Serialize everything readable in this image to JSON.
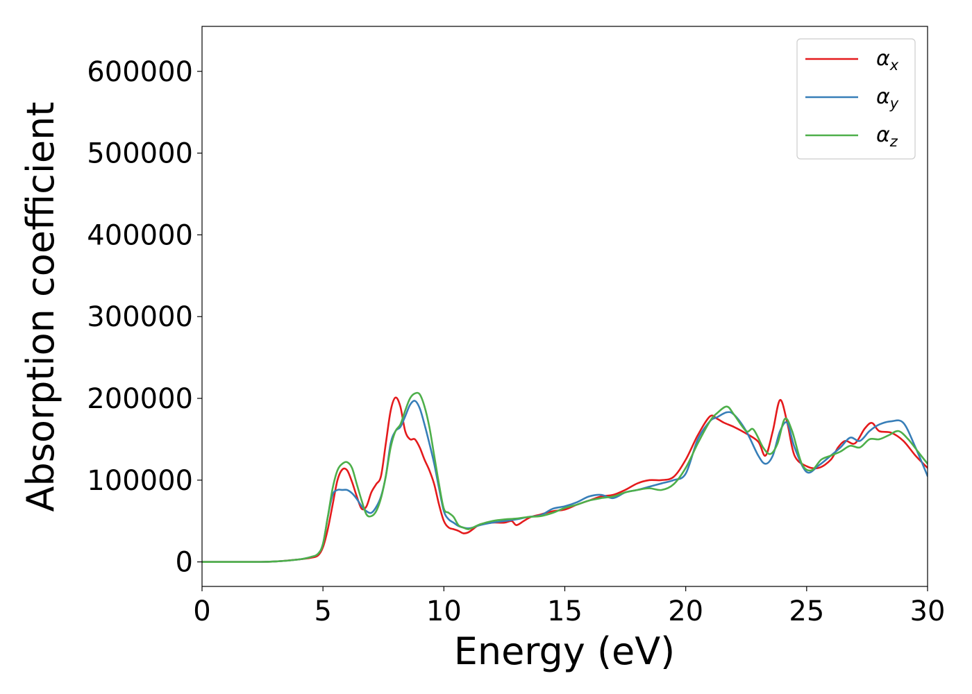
{
  "chart_data": {
    "type": "line",
    "title": "",
    "xlabel": "Energy (eV)",
    "ylabel": "Absorption coefficient",
    "xlim": [
      0,
      30
    ],
    "ylim": [
      -30000,
      655000
    ],
    "grid": false,
    "legend_position": "top-right",
    "x_ticks": [
      0,
      5,
      10,
      15,
      20,
      25,
      30
    ],
    "x_tick_labels": [
      "0",
      "5",
      "10",
      "15",
      "20",
      "25",
      "30"
    ],
    "y_ticks": [
      0,
      100000,
      200000,
      300000,
      400000,
      500000,
      600000
    ],
    "y_tick_labels": [
      "0",
      "100000",
      "200000",
      "300000",
      "400000",
      "500000",
      "600000"
    ],
    "series": [
      {
        "name": "α",
        "subscript": "x",
        "color": "#e41a1c",
        "x": [
          0,
          2,
          3,
          4,
          4.5,
          4.8,
          5.0,
          5.2,
          5.4,
          5.6,
          5.8,
          6.0,
          6.2,
          6.4,
          6.6,
          6.8,
          7.0,
          7.2,
          7.4,
          7.6,
          7.8,
          8.0,
          8.2,
          8.4,
          8.6,
          8.8,
          9.0,
          9.2,
          9.4,
          9.6,
          9.8,
          10.0,
          10.2,
          10.4,
          10.6,
          10.8,
          11.0,
          11.2,
          11.5,
          12.0,
          12.5,
          12.8,
          13.0,
          13.3,
          13.6,
          14.0,
          14.5,
          15.0,
          15.5,
          16.0,
          16.5,
          17.0,
          17.5,
          18.0,
          18.5,
          19.0,
          19.5,
          20.0,
          20.5,
          21.0,
          21.3,
          21.6,
          22.0,
          22.5,
          23.0,
          23.3,
          23.6,
          23.9,
          24.2,
          24.5,
          25.0,
          25.5,
          26.0,
          26.3,
          26.6,
          27.0,
          27.4,
          27.7,
          28.0,
          28.5,
          29.0,
          29.5,
          30.0
        ],
        "y": [
          0,
          0,
          500,
          3000,
          5000,
          8000,
          18000,
          40000,
          70000,
          100000,
          113000,
          112000,
          98000,
          80000,
          65000,
          68000,
          85000,
          95000,
          105000,
          145000,
          185000,
          201000,
          190000,
          160000,
          150000,
          150000,
          140000,
          125000,
          112000,
          95000,
          70000,
          50000,
          42000,
          40000,
          38000,
          35000,
          36000,
          40000,
          46000,
          48000,
          48000,
          50000,
          45000,
          50000,
          55000,
          58000,
          62000,
          64000,
          70000,
          75000,
          80000,
          82000,
          88000,
          96000,
          100000,
          100000,
          104000,
          125000,
          155000,
          178000,
          175000,
          170000,
          165000,
          157000,
          147000,
          130000,
          160000,
          198000,
          170000,
          130000,
          117000,
          115000,
          125000,
          140000,
          148000,
          145000,
          163000,
          170000,
          160000,
          158000,
          148000,
          130000,
          115000
        ]
      },
      {
        "name": "α",
        "subscript": "y",
        "color": "#377eb8",
        "x": [
          0,
          2,
          3,
          4,
          4.5,
          4.8,
          5.0,
          5.2,
          5.4,
          5.6,
          5.8,
          6.0,
          6.2,
          6.4,
          6.6,
          6.8,
          7.0,
          7.2,
          7.4,
          7.6,
          7.8,
          8.0,
          8.2,
          8.4,
          8.6,
          8.8,
          9.0,
          9.2,
          9.4,
          9.6,
          9.8,
          10.0,
          10.2,
          10.4,
          10.6,
          10.8,
          11.0,
          11.2,
          11.5,
          12.0,
          12.5,
          13.0,
          13.5,
          14.0,
          14.5,
          15.0,
          15.5,
          16.0,
          16.5,
          17.0,
          17.5,
          18.0,
          18.5,
          19.0,
          19.5,
          20.0,
          20.5,
          21.0,
          21.3,
          21.7,
          22.0,
          22.5,
          23.0,
          23.3,
          23.6,
          23.9,
          24.2,
          24.5,
          25.0,
          25.5,
          26.0,
          26.4,
          26.8,
          27.2,
          27.6,
          28.0,
          28.5,
          29.0,
          29.5,
          30.0
        ],
        "y": [
          0,
          0,
          500,
          3000,
          6000,
          10000,
          22000,
          55000,
          82000,
          88000,
          88000,
          88000,
          84000,
          77000,
          68000,
          62000,
          60000,
          67000,
          80000,
          105000,
          145000,
          160000,
          165000,
          178000,
          192000,
          197000,
          188000,
          168000,
          145000,
          120000,
          90000,
          62000,
          52000,
          48000,
          44000,
          42000,
          41000,
          42000,
          45000,
          48000,
          50000,
          52000,
          55000,
          57000,
          65000,
          68000,
          73000,
          80000,
          82000,
          78000,
          85000,
          88000,
          92000,
          96000,
          100000,
          108000,
          150000,
          172000,
          177000,
          183000,
          180000,
          160000,
          130000,
          120000,
          130000,
          160000,
          170000,
          140000,
          110000,
          118000,
          130000,
          140000,
          152000,
          148000,
          160000,
          168000,
          172000,
          170000,
          140000,
          105000
        ]
      },
      {
        "name": "α",
        "subscript": "z",
        "color": "#4daf4a",
        "x": [
          0,
          2,
          3,
          4,
          4.5,
          4.8,
          5.0,
          5.2,
          5.4,
          5.6,
          5.8,
          6.0,
          6.2,
          6.4,
          6.6,
          6.8,
          7.0,
          7.2,
          7.4,
          7.6,
          7.8,
          8.0,
          8.2,
          8.4,
          8.6,
          8.8,
          9.0,
          9.2,
          9.4,
          9.6,
          9.8,
          10.0,
          10.2,
          10.4,
          10.6,
          10.8,
          11.0,
          11.2,
          11.5,
          12.0,
          12.5,
          13.0,
          13.5,
          14.0,
          14.5,
          15.0,
          15.5,
          16.0,
          16.5,
          17.0,
          17.5,
          18.0,
          18.5,
          19.0,
          19.5,
          20.0,
          20.5,
          21.0,
          21.3,
          21.7,
          22.0,
          22.5,
          22.8,
          23.2,
          23.5,
          23.8,
          24.1,
          24.4,
          24.8,
          25.2,
          25.6,
          26.0,
          26.4,
          26.8,
          27.2,
          27.6,
          28.0,
          28.4,
          28.8,
          29.2,
          29.6,
          30.0
        ],
        "y": [
          0,
          0,
          500,
          3000,
          6000,
          10000,
          22000,
          55000,
          90000,
          112000,
          120000,
          122000,
          115000,
          95000,
          75000,
          58000,
          56000,
          62000,
          78000,
          105000,
          140000,
          160000,
          168000,
          185000,
          200000,
          206000,
          205000,
          190000,
          165000,
          130000,
          95000,
          65000,
          60000,
          55000,
          45000,
          42000,
          40000,
          42000,
          46000,
          50000,
          52000,
          53000,
          55000,
          56000,
          60000,
          66000,
          70000,
          75000,
          78000,
          80000,
          85000,
          88000,
          90000,
          88000,
          95000,
          115000,
          145000,
          172000,
          182000,
          190000,
          180000,
          160000,
          162000,
          140000,
          132000,
          145000,
          175000,
          160000,
          120000,
          112000,
          125000,
          130000,
          135000,
          142000,
          140000,
          150000,
          150000,
          155000,
          160000,
          150000,
          135000,
          120000
        ]
      }
    ]
  }
}
